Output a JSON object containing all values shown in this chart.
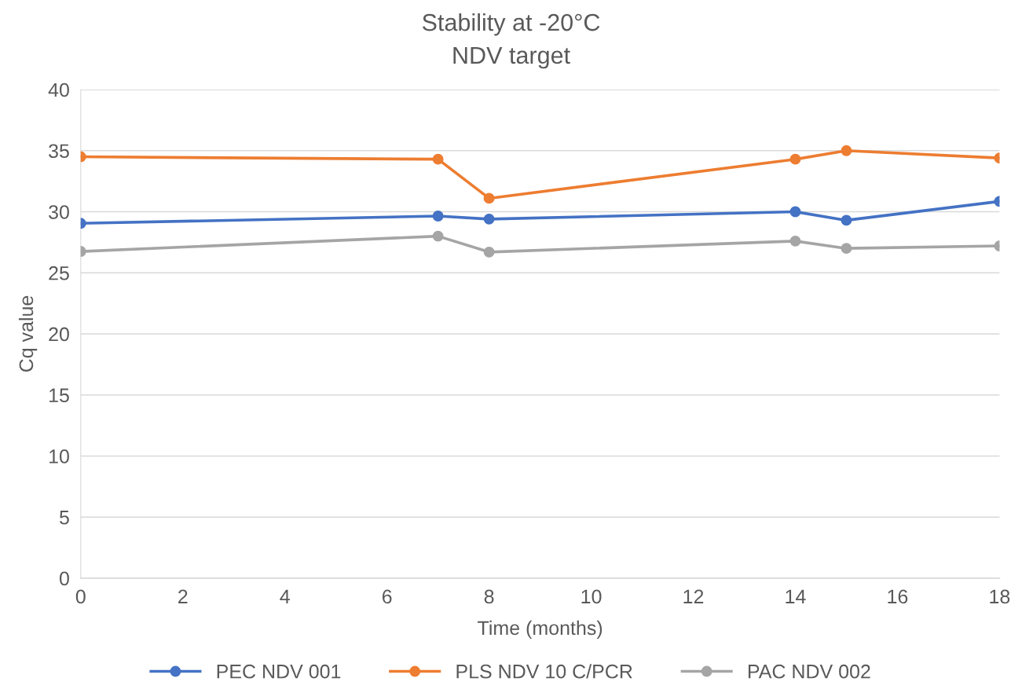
{
  "chart_data": {
    "type": "line",
    "title": "Stability at -20°C",
    "subtitle": "NDV target",
    "xlabel": "Time (months)",
    "ylabel": "Cq value",
    "x": [
      0,
      7,
      8,
      14,
      15,
      18
    ],
    "series": [
      {
        "name": "PEC NDV 001",
        "color": "#4472c4",
        "values": [
          29.05,
          29.65,
          29.4,
          30.0,
          29.3,
          30.85
        ]
      },
      {
        "name": "PLS NDV 10 C/PCR",
        "color": "#ed7d31",
        "values": [
          34.5,
          34.3,
          31.1,
          34.3,
          35.0,
          34.4
        ]
      },
      {
        "name": "PAC NDV 002",
        "color": "#a5a5a5",
        "values": [
          26.75,
          28.0,
          26.7,
          27.6,
          27.0,
          27.2
        ]
      }
    ],
    "xlim": [
      0,
      18
    ],
    "xticks": [
      0,
      2,
      4,
      6,
      8,
      10,
      12,
      14,
      16,
      18
    ],
    "ylim": [
      0,
      40
    ],
    "yticks": [
      0,
      5,
      10,
      15,
      20,
      25,
      30,
      35,
      40
    ],
    "grid": "y",
    "legend": "bottom",
    "marker": "circle",
    "line_style": "solid"
  }
}
